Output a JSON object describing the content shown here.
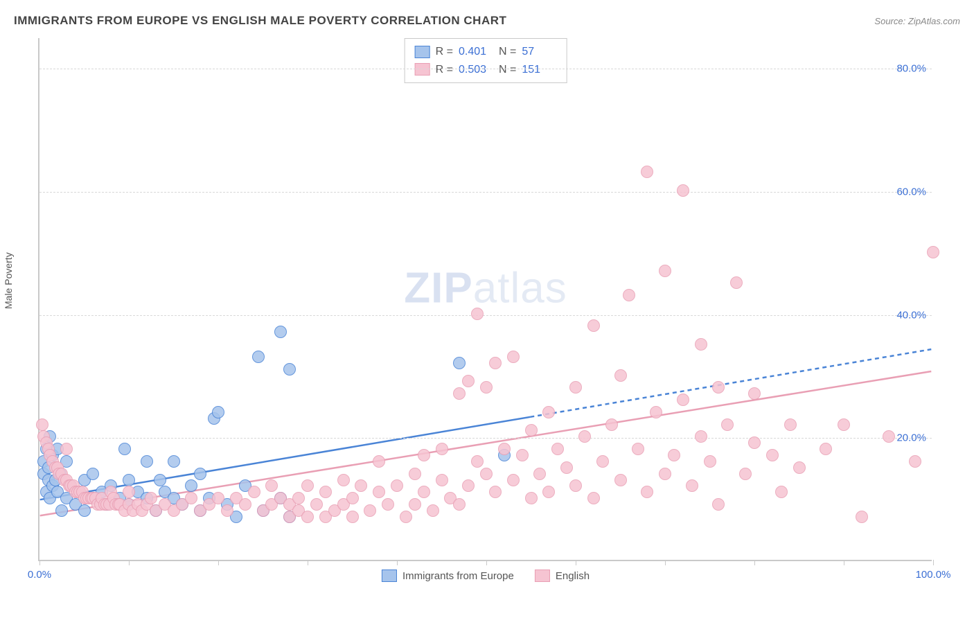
{
  "title": "IMMIGRANTS FROM EUROPE VS ENGLISH MALE POVERTY CORRELATION CHART",
  "source_label": "Source:",
  "source_value": "ZipAtlas.com",
  "watermark": {
    "bold": "ZIP",
    "light": "atlas"
  },
  "chart": {
    "type": "scatter",
    "ylabel": "Male Poverty",
    "xlim": [
      0,
      100
    ],
    "ylim": [
      0,
      85
    ],
    "background_color": "#ffffff",
    "grid_color": "#d8d8d8",
    "grid_dash": "4 4",
    "axis_color": "#c9c9c9",
    "ytick_values": [
      20,
      40,
      60,
      80
    ],
    "ytick_labels": [
      "20.0%",
      "40.0%",
      "60.0%",
      "80.0%"
    ],
    "xtick_values": [
      0,
      10,
      20,
      30,
      40,
      50,
      60,
      70,
      80,
      90,
      100
    ],
    "xtick_end_labels": {
      "0": "0.0%",
      "100": "100.0%"
    },
    "label_color": "#3b6fd4",
    "label_fontsize": 15,
    "marker_radius": 9,
    "marker_stroke_width": 1.5,
    "marker_fill_opacity": 0.25,
    "series": [
      {
        "id": "europe",
        "name": "Immigrants from Europe",
        "color_stroke": "#4a84d6",
        "color_fill": "#a6c4ec",
        "R": "0.401",
        "N": "57",
        "trend": {
          "slope": 0.245,
          "intercept": 9.8,
          "solid_xmax": 55,
          "line_width": 2.5,
          "dash": "6 5"
        },
        "points": [
          [
            0.5,
            14
          ],
          [
            0.5,
            16
          ],
          [
            0.8,
            18
          ],
          [
            0.8,
            11
          ],
          [
            1,
            13
          ],
          [
            1,
            15
          ],
          [
            1.2,
            20
          ],
          [
            1.2,
            10
          ],
          [
            1.5,
            12
          ],
          [
            1.5,
            17
          ],
          [
            1.8,
            13
          ],
          [
            2,
            11
          ],
          [
            2,
            18
          ],
          [
            2.3,
            14
          ],
          [
            2.5,
            8
          ],
          [
            3,
            16
          ],
          [
            3,
            10
          ],
          [
            3.5,
            12
          ],
          [
            4,
            9
          ],
          [
            4.5,
            11
          ],
          [
            5,
            13
          ],
          [
            5,
            8
          ],
          [
            6,
            14
          ],
          [
            6,
            10
          ],
          [
            7,
            11
          ],
          [
            7.5,
            9
          ],
          [
            8,
            12
          ],
          [
            9,
            10
          ],
          [
            9.5,
            18
          ],
          [
            10,
            13
          ],
          [
            10,
            9
          ],
          [
            11,
            11
          ],
          [
            12,
            16
          ],
          [
            12,
            10
          ],
          [
            13,
            8
          ],
          [
            13.5,
            13
          ],
          [
            14,
            11
          ],
          [
            15,
            10
          ],
          [
            15,
            16
          ],
          [
            16,
            9
          ],
          [
            17,
            12
          ],
          [
            18,
            8
          ],
          [
            18,
            14
          ],
          [
            19,
            10
          ],
          [
            19.5,
            23
          ],
          [
            20,
            24
          ],
          [
            21,
            9
          ],
          [
            22,
            7
          ],
          [
            23,
            12
          ],
          [
            24.5,
            33
          ],
          [
            25,
            8
          ],
          [
            27,
            37
          ],
          [
            27,
            10
          ],
          [
            28,
            31
          ],
          [
            28,
            7
          ],
          [
            47,
            32
          ],
          [
            52,
            17
          ]
        ]
      },
      {
        "id": "english",
        "name": "English",
        "color_stroke": "#e99fb4",
        "color_fill": "#f6c4d2",
        "R": "0.503",
        "N": "151",
        "trend": {
          "slope": 0.235,
          "intercept": 7.2,
          "solid_xmax": 100,
          "line_width": 2.5
        },
        "points": [
          [
            0.3,
            22
          ],
          [
            0.5,
            20
          ],
          [
            0.8,
            19
          ],
          [
            1,
            18
          ],
          [
            1.2,
            17
          ],
          [
            1.5,
            16
          ],
          [
            1.8,
            15
          ],
          [
            2,
            15
          ],
          [
            2.2,
            14
          ],
          [
            2.5,
            14
          ],
          [
            2.8,
            13
          ],
          [
            3,
            13
          ],
          [
            3.3,
            12
          ],
          [
            3.5,
            12
          ],
          [
            3.8,
            12
          ],
          [
            4,
            11
          ],
          [
            4.3,
            11
          ],
          [
            4.5,
            11
          ],
          [
            4.8,
            11
          ],
          [
            5,
            10
          ],
          [
            5.3,
            10
          ],
          [
            5.5,
            10
          ],
          [
            5.8,
            10
          ],
          [
            6,
            10
          ],
          [
            6.3,
            10
          ],
          [
            6.5,
            9
          ],
          [
            6.8,
            9
          ],
          [
            7,
            10
          ],
          [
            7.3,
            9
          ],
          [
            7.5,
            9
          ],
          [
            7.8,
            9
          ],
          [
            8,
            11
          ],
          [
            8.3,
            10
          ],
          [
            8.5,
            9
          ],
          [
            8.8,
            9
          ],
          [
            9,
            9
          ],
          [
            9.5,
            8
          ],
          [
            10,
            9
          ],
          [
            10,
            11
          ],
          [
            10.5,
            8
          ],
          [
            11,
            9
          ],
          [
            11.5,
            8
          ],
          [
            12,
            9
          ],
          [
            12.5,
            10
          ],
          [
            13,
            8
          ],
          [
            14,
            9
          ],
          [
            15,
            8
          ],
          [
            16,
            9
          ],
          [
            17,
            10
          ],
          [
            18,
            8
          ],
          [
            19,
            9
          ],
          [
            20,
            10
          ],
          [
            21,
            8
          ],
          [
            22,
            10
          ],
          [
            23,
            9
          ],
          [
            24,
            11
          ],
          [
            25,
            8
          ],
          [
            26,
            9
          ],
          [
            26,
            12
          ],
          [
            27,
            10
          ],
          [
            28,
            9
          ],
          [
            28,
            7
          ],
          [
            29,
            10
          ],
          [
            29,
            8
          ],
          [
            30,
            7
          ],
          [
            30,
            12
          ],
          [
            31,
            9
          ],
          [
            32,
            7
          ],
          [
            32,
            11
          ],
          [
            33,
            8
          ],
          [
            34,
            13
          ],
          [
            34,
            9
          ],
          [
            35,
            10
          ],
          [
            35,
            7
          ],
          [
            36,
            12
          ],
          [
            37,
            8
          ],
          [
            38,
            11
          ],
          [
            38,
            16
          ],
          [
            39,
            9
          ],
          [
            40,
            12
          ],
          [
            41,
            7
          ],
          [
            42,
            14
          ],
          [
            42,
            9
          ],
          [
            43,
            17
          ],
          [
            43,
            11
          ],
          [
            44,
            8
          ],
          [
            45,
            13
          ],
          [
            45,
            18
          ],
          [
            46,
            10
          ],
          [
            47,
            9
          ],
          [
            47,
            27
          ],
          [
            48,
            12
          ],
          [
            48,
            29
          ],
          [
            49,
            16
          ],
          [
            49,
            40
          ],
          [
            50,
            14
          ],
          [
            50,
            28
          ],
          [
            51,
            11
          ],
          [
            51,
            32
          ],
          [
            52,
            18
          ],
          [
            53,
            13
          ],
          [
            53,
            33
          ],
          [
            54,
            17
          ],
          [
            55,
            10
          ],
          [
            55,
            21
          ],
          [
            56,
            14
          ],
          [
            57,
            24
          ],
          [
            57,
            11
          ],
          [
            58,
            18
          ],
          [
            59,
            15
          ],
          [
            60,
            12
          ],
          [
            60,
            28
          ],
          [
            61,
            20
          ],
          [
            62,
            10
          ],
          [
            62,
            38
          ],
          [
            63,
            16
          ],
          [
            64,
            22
          ],
          [
            65,
            13
          ],
          [
            65,
            30
          ],
          [
            66,
            43
          ],
          [
            67,
            18
          ],
          [
            68,
            11
          ],
          [
            68,
            63
          ],
          [
            69,
            24
          ],
          [
            70,
            14
          ],
          [
            70,
            47
          ],
          [
            71,
            17
          ],
          [
            72,
            26
          ],
          [
            72,
            60
          ],
          [
            73,
            12
          ],
          [
            74,
            20
          ],
          [
            74,
            35
          ],
          [
            75,
            16
          ],
          [
            76,
            9
          ],
          [
            76,
            28
          ],
          [
            77,
            22
          ],
          [
            78,
            45
          ],
          [
            79,
            14
          ],
          [
            80,
            19
          ],
          [
            80,
            27
          ],
          [
            82,
            17
          ],
          [
            83,
            11
          ],
          [
            84,
            22
          ],
          [
            85,
            15
          ],
          [
            88,
            18
          ],
          [
            90,
            22
          ],
          [
            92,
            7
          ],
          [
            95,
            20
          ],
          [
            98,
            16
          ],
          [
            100,
            50
          ],
          [
            3,
            18
          ]
        ]
      }
    ],
    "bottom_legend": [
      {
        "series": "europe",
        "label": "Immigrants from Europe"
      },
      {
        "series": "english",
        "label": "English"
      }
    ]
  }
}
